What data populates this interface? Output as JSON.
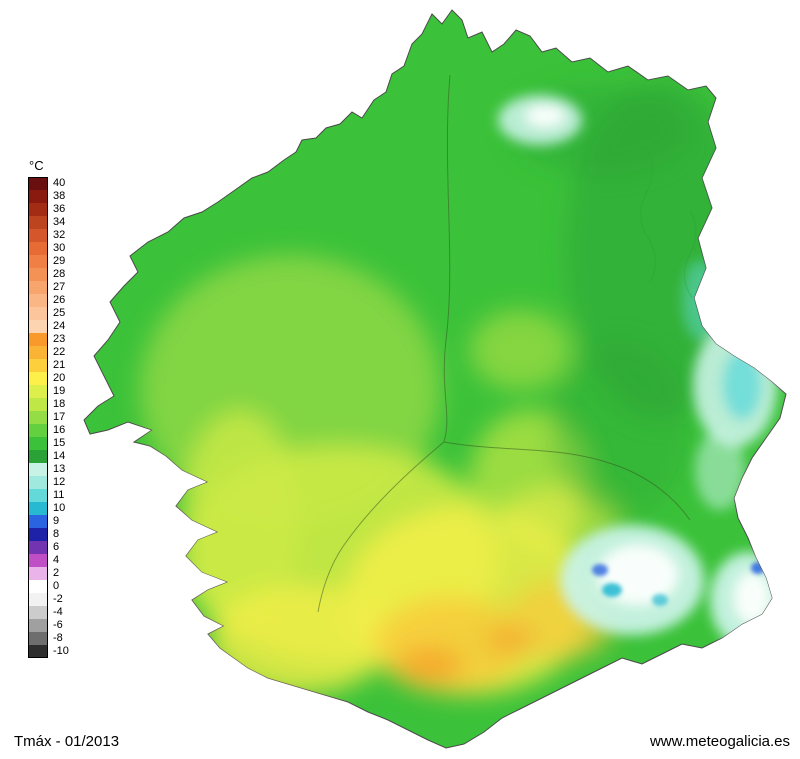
{
  "legend": {
    "unit_label": "°C",
    "entries": [
      {
        "value": "40",
        "color": "#6a0f0f"
      },
      {
        "value": "38",
        "color": "#8a1a10"
      },
      {
        "value": "36",
        "color": "#a22c14"
      },
      {
        "value": "34",
        "color": "#bc4520"
      },
      {
        "value": "32",
        "color": "#d4562a"
      },
      {
        "value": "30",
        "color": "#e76b35"
      },
      {
        "value": "29",
        "color": "#ef7f44"
      },
      {
        "value": "28",
        "color": "#f49256"
      },
      {
        "value": "27",
        "color": "#f7a56c"
      },
      {
        "value": "26",
        "color": "#fab684"
      },
      {
        "value": "25",
        "color": "#fcc59b"
      },
      {
        "value": "24",
        "color": "#fdd4b2"
      },
      {
        "value": "23",
        "color": "#f9992b"
      },
      {
        "value": "22",
        "color": "#fbb335"
      },
      {
        "value": "21",
        "color": "#fdcf3c"
      },
      {
        "value": "20",
        "color": "#fdf04b"
      },
      {
        "value": "19",
        "color": "#ddef4b"
      },
      {
        "value": "18",
        "color": "#bfe847"
      },
      {
        "value": "17",
        "color": "#94dd45"
      },
      {
        "value": "16",
        "color": "#63d03f"
      },
      {
        "value": "15",
        "color": "#3cc23a"
      },
      {
        "value": "14",
        "color": "#2aa235"
      },
      {
        "value": "13",
        "color": "#c9f2e6"
      },
      {
        "value": "12",
        "color": "#9fe9df"
      },
      {
        "value": "11",
        "color": "#63d9da"
      },
      {
        "value": "10",
        "color": "#28b9d2"
      },
      {
        "value": "9",
        "color": "#2b64e0"
      },
      {
        "value": "8",
        "color": "#1d22a8"
      },
      {
        "value": "6",
        "color": "#7234b0"
      },
      {
        "value": "4",
        "color": "#c04ec4"
      },
      {
        "value": "2",
        "color": "#eab4ea"
      },
      {
        "value": "0",
        "color": "#ffffff"
      },
      {
        "value": "-2",
        "color": "#f2f2f2"
      },
      {
        "value": "-4",
        "color": "#cccccc"
      },
      {
        "value": "-6",
        "color": "#a0a0a0"
      },
      {
        "value": "-8",
        "color": "#6e6e6e"
      },
      {
        "value": "-10",
        "color": "#2e2e2e"
      }
    ]
  },
  "footer": {
    "caption": "Tmáx - 01/2013",
    "website": "www.meteogalicia.es"
  },
  "map": {
    "colors": {
      "base_green": "#3cc23a",
      "light_green": "#8ed847",
      "yellow_green": "#cdea46",
      "yellow": "#f3ee48",
      "amber": "#f9c93a",
      "orange": "#f59d2c",
      "dark_green": "#2aa235",
      "pale_cyan": "#c9f2e6",
      "cyan": "#63d9da",
      "deep_cyan": "#28b9d2",
      "blue": "#2b64e0",
      "snow_white": "#ffffff",
      "coast_outline": "#4a4a4a",
      "boundary_line": "#33511f"
    }
  }
}
